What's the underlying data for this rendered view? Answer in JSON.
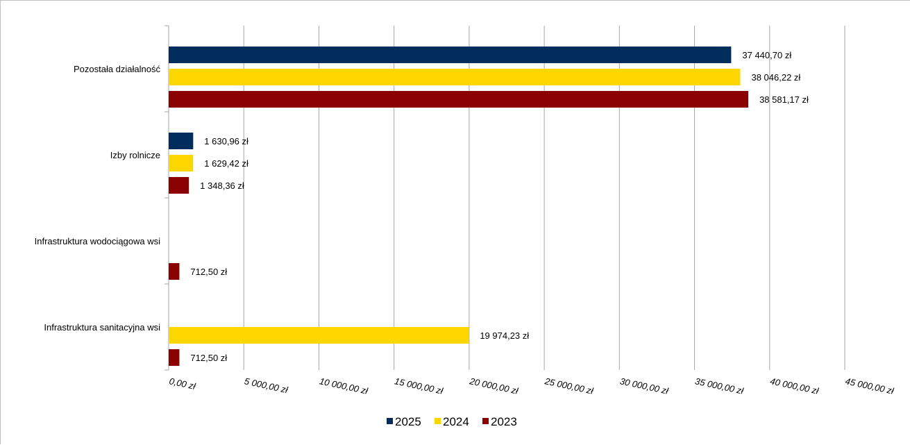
{
  "chart_data": {
    "type": "bar",
    "orientation": "horizontal",
    "title": "",
    "xlabel": "",
    "ylabel": "",
    "xlim": [
      0,
      45000
    ],
    "x_ticks": [
      0,
      5000,
      10000,
      15000,
      20000,
      25000,
      30000,
      35000,
      40000,
      45000
    ],
    "x_tick_labels": [
      "0,00 zł",
      "5 000,00 zł",
      "10 000,00 zł",
      "15 000,00 zł",
      "20 000,00 zł",
      "25 000,00 zł",
      "30 000,00 zł",
      "35 000,00 zł",
      "40 000,00 zł",
      "45 000,00 zł"
    ],
    "grid": "vertical",
    "legend_position": "bottom",
    "categories": [
      "Pozostała działalność",
      "Izby rolnicze",
      "Infrastruktura wodociągowa wsi",
      "Infrastruktura sanitacyjna wsi"
    ],
    "series": [
      {
        "name": "2025",
        "color": "#002d5c",
        "values": [
          37440.7,
          1630.96,
          null,
          null
        ],
        "labels": [
          "37 440,70 zł",
          "1 630,96 zł",
          "",
          ""
        ]
      },
      {
        "name": "2024",
        "color": "#ffd700",
        "values": [
          38046.22,
          1629.42,
          null,
          19974.23
        ],
        "labels": [
          "38 046,22 zł",
          "1 629,42 zł",
          "",
          "19 974,23 zł"
        ]
      },
      {
        "name": "2023",
        "color": "#8b0000",
        "values": [
          38581.17,
          1348.36,
          712.5,
          712.5
        ],
        "labels": [
          "38 581,17 zł",
          "1 348,36 zł",
          "712,50 zł",
          "712,50 zł"
        ]
      }
    ]
  }
}
